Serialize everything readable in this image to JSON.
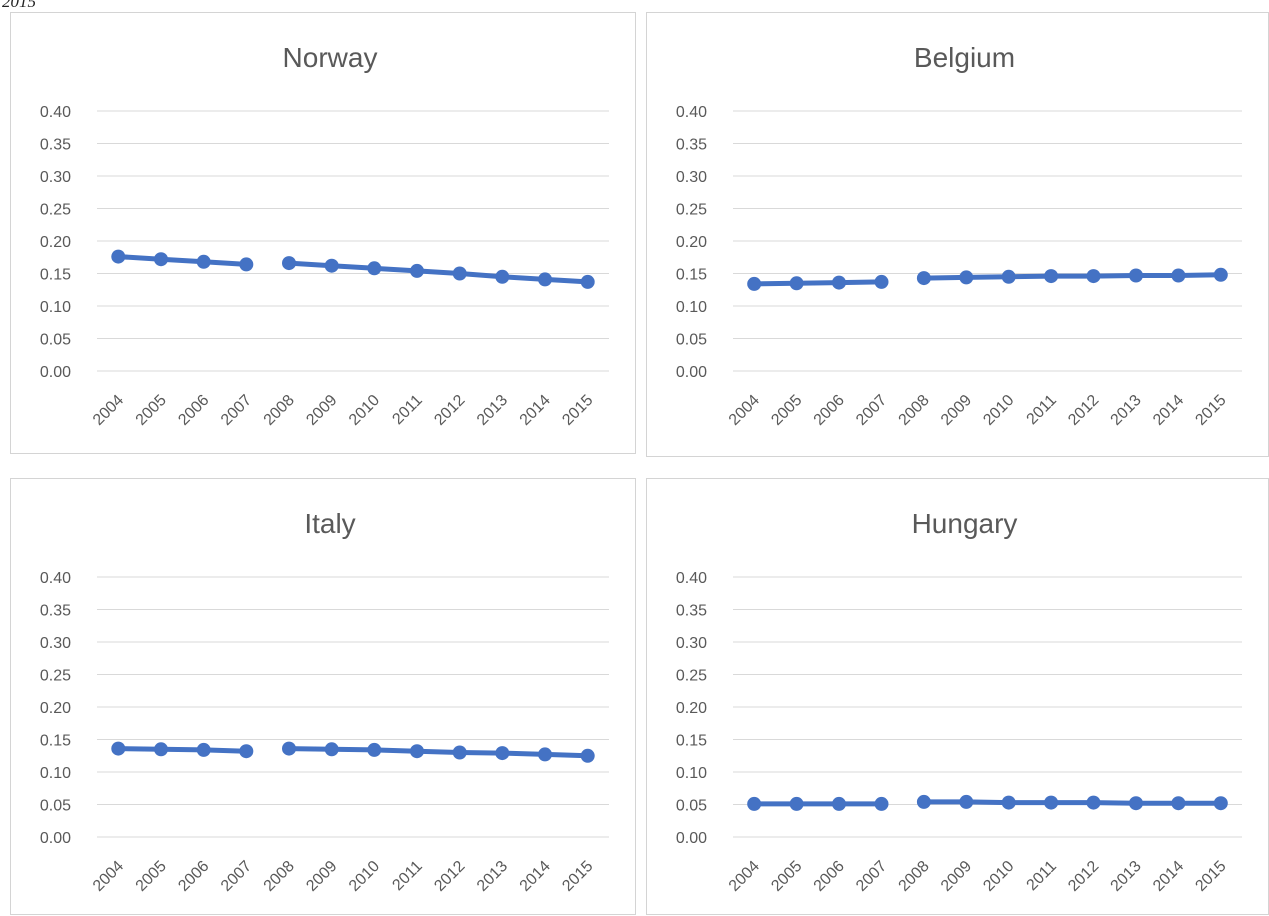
{
  "caption_fragment": "2015",
  "style": {
    "line_color": "#4472c4",
    "grid_color": "#d9d9d9",
    "text_color": "#595959"
  },
  "chart_data": [
    {
      "type": "line",
      "title": "Norway",
      "ylim": [
        0,
        0.4
      ],
      "yticks": [
        "0.00",
        "0.05",
        "0.10",
        "0.15",
        "0.20",
        "0.25",
        "0.30",
        "0.35",
        "0.40"
      ],
      "categories": [
        "2004",
        "2005",
        "2006",
        "2007",
        "2008",
        "2009",
        "2010",
        "2011",
        "2012",
        "2013",
        "2014",
        "2015"
      ],
      "segments": [
        [
          0,
          1,
          2,
          3
        ],
        [
          4,
          5,
          6,
          7,
          8,
          9,
          10,
          11
        ]
      ],
      "values": [
        0.176,
        0.172,
        0.168,
        0.164,
        0.166,
        0.162,
        0.158,
        0.154,
        0.15,
        0.145,
        0.141,
        0.137
      ],
      "grid": true,
      "legend": "none"
    },
    {
      "type": "line",
      "title": "Belgium",
      "ylim": [
        0,
        0.4
      ],
      "yticks": [
        "0.00",
        "0.05",
        "0.10",
        "0.15",
        "0.20",
        "0.25",
        "0.30",
        "0.35",
        "0.40"
      ],
      "categories": [
        "2004",
        "2005",
        "2006",
        "2007",
        "2008",
        "2009",
        "2010",
        "2011",
        "2012",
        "2013",
        "2014",
        "2015"
      ],
      "segments": [
        [
          0,
          1,
          2,
          3
        ],
        [
          4,
          5,
          6,
          7,
          8,
          9,
          10,
          11
        ]
      ],
      "values": [
        0.134,
        0.135,
        0.136,
        0.137,
        0.143,
        0.144,
        0.145,
        0.146,
        0.146,
        0.147,
        0.147,
        0.148
      ],
      "grid": true,
      "legend": "none"
    },
    {
      "type": "line",
      "title": "Italy",
      "ylim": [
        0,
        0.4
      ],
      "yticks": [
        "0.00",
        "0.05",
        "0.10",
        "0.15",
        "0.20",
        "0.25",
        "0.30",
        "0.35",
        "0.40"
      ],
      "categories": [
        "2004",
        "2005",
        "2006",
        "2007",
        "2008",
        "2009",
        "2010",
        "2011",
        "2012",
        "2013",
        "2014",
        "2015"
      ],
      "segments": [
        [
          0,
          1,
          2,
          3
        ],
        [
          4,
          5,
          6,
          7,
          8,
          9,
          10,
          11
        ]
      ],
      "values": [
        0.136,
        0.135,
        0.134,
        0.132,
        0.136,
        0.135,
        0.134,
        0.132,
        0.13,
        0.129,
        0.127,
        0.125
      ],
      "grid": true,
      "legend": "none"
    },
    {
      "type": "line",
      "title": "Hungary",
      "ylim": [
        0,
        0.4
      ],
      "yticks": [
        "0.00",
        "0.05",
        "0.10",
        "0.15",
        "0.20",
        "0.25",
        "0.30",
        "0.35",
        "0.40"
      ],
      "categories": [
        "2004",
        "2005",
        "2006",
        "2007",
        "2008",
        "2009",
        "2010",
        "2011",
        "2012",
        "2013",
        "2014",
        "2015"
      ],
      "segments": [
        [
          0,
          1,
          2,
          3
        ],
        [
          4,
          5,
          6,
          7,
          8,
          9,
          10,
          11
        ]
      ],
      "values": [
        0.051,
        0.051,
        0.051,
        0.051,
        0.054,
        0.054,
        0.053,
        0.053,
        0.053,
        0.052,
        0.052,
        0.052
      ],
      "grid": true,
      "legend": "none"
    }
  ]
}
